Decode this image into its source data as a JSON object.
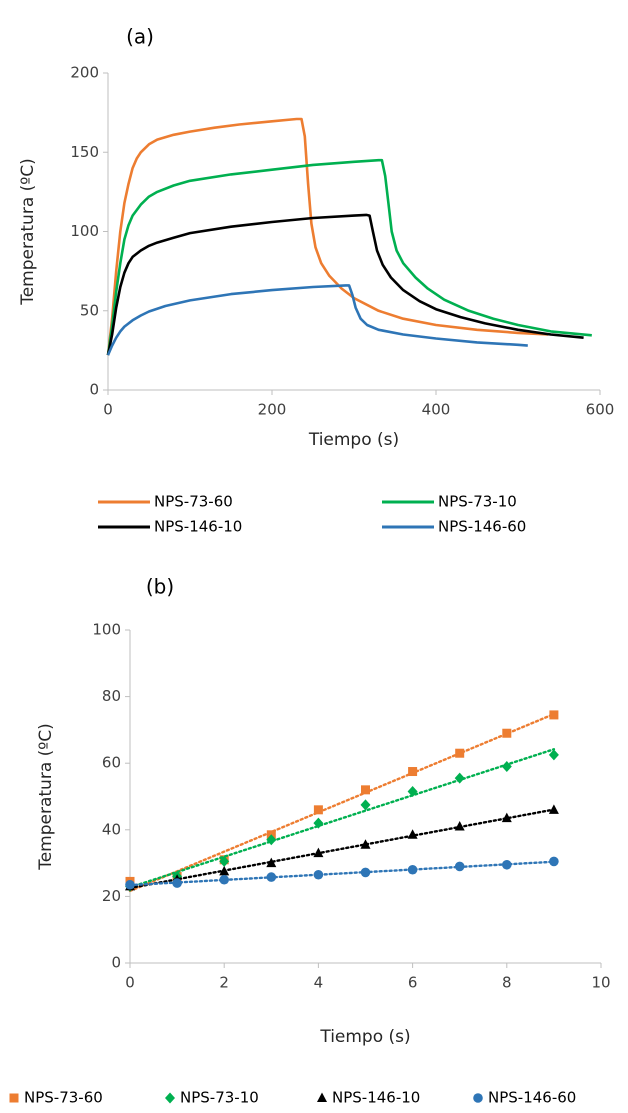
{
  "chart_data": [
    {
      "type": "line",
      "panel_label": "(a)",
      "xlabel": "Tiempo (s)",
      "ylabel": "Temperatura (ºC)",
      "xlim": [
        0,
        600
      ],
      "ylim": [
        0,
        200
      ],
      "x_ticks": [
        0,
        200,
        400,
        600
      ],
      "y_ticks": [
        0,
        50,
        100,
        150,
        200
      ],
      "grid": false,
      "legend_position": "bottom",
      "series": [
        {
          "name": "NPS-73-60",
          "color": "#ED7D31",
          "points": [
            [
              0,
              22
            ],
            [
              5,
              45
            ],
            [
              10,
              75
            ],
            [
              15,
              100
            ],
            [
              20,
              118
            ],
            [
              25,
              130
            ],
            [
              30,
              140
            ],
            [
              35,
              146
            ],
            [
              40,
              150
            ],
            [
              50,
              155
            ],
            [
              60,
              158
            ],
            [
              80,
              161
            ],
            [
              100,
              163
            ],
            [
              130,
              165.5
            ],
            [
              160,
              167.5
            ],
            [
              200,
              169.5
            ],
            [
              230,
              171
            ],
            [
              236,
              171
            ],
            [
              240,
              160
            ],
            [
              244,
              130
            ],
            [
              248,
              105
            ],
            [
              253,
              90
            ],
            [
              260,
              80
            ],
            [
              270,
              72
            ],
            [
              285,
              64
            ],
            [
              300,
              58
            ],
            [
              330,
              50
            ],
            [
              360,
              45
            ],
            [
              400,
              41
            ],
            [
              450,
              38
            ],
            [
              500,
              36
            ],
            [
              537,
              35
            ]
          ]
        },
        {
          "name": "NPS-73-10",
          "color": "#00B050",
          "points": [
            [
              0,
              22
            ],
            [
              5,
              40
            ],
            [
              10,
              62
            ],
            [
              15,
              80
            ],
            [
              20,
              95
            ],
            [
              25,
              104
            ],
            [
              30,
              110
            ],
            [
              40,
              117
            ],
            [
              50,
              122
            ],
            [
              60,
              125
            ],
            [
              80,
              129
            ],
            [
              100,
              132
            ],
            [
              150,
              136
            ],
            [
              200,
              139
            ],
            [
              250,
              142
            ],
            [
              300,
              144
            ],
            [
              330,
              145
            ],
            [
              334,
              145
            ],
            [
              338,
              135
            ],
            [
              342,
              118
            ],
            [
              346,
              100
            ],
            [
              352,
              88
            ],
            [
              360,
              80
            ],
            [
              375,
              71
            ],
            [
              390,
              64
            ],
            [
              410,
              57
            ],
            [
              440,
              50
            ],
            [
              470,
              45
            ],
            [
              500,
              41
            ],
            [
              540,
              37
            ],
            [
              590,
              34.5
            ]
          ]
        },
        {
          "name": "NPS-146-10",
          "color": "#000000",
          "points": [
            [
              0,
              22
            ],
            [
              5,
              35
            ],
            [
              10,
              52
            ],
            [
              15,
              65
            ],
            [
              20,
              74
            ],
            [
              25,
              80
            ],
            [
              30,
              84
            ],
            [
              40,
              88
            ],
            [
              50,
              91
            ],
            [
              60,
              93
            ],
            [
              80,
              96
            ],
            [
              100,
              99
            ],
            [
              150,
              103
            ],
            [
              200,
              106
            ],
            [
              250,
              108.5
            ],
            [
              300,
              110
            ],
            [
              315,
              110.5
            ],
            [
              319,
              110
            ],
            [
              323,
              100
            ],
            [
              328,
              88
            ],
            [
              335,
              79
            ],
            [
              345,
              71
            ],
            [
              360,
              63
            ],
            [
              380,
              56
            ],
            [
              400,
              51
            ],
            [
              430,
              46
            ],
            [
              460,
              42
            ],
            [
              500,
              38
            ],
            [
              540,
              35
            ],
            [
              580,
              33
            ]
          ]
        },
        {
          "name": "NPS-146-60",
          "color": "#2E75B6",
          "points": [
            [
              0,
              22
            ],
            [
              5,
              28
            ],
            [
              10,
              33
            ],
            [
              15,
              37
            ],
            [
              20,
              40
            ],
            [
              30,
              44
            ],
            [
              40,
              47
            ],
            [
              50,
              49.5
            ],
            [
              70,
              53
            ],
            [
              100,
              56.5
            ],
            [
              150,
              60.5
            ],
            [
              200,
              63
            ],
            [
              250,
              65
            ],
            [
              290,
              66
            ],
            [
              294,
              66
            ],
            [
              298,
              60
            ],
            [
              302,
              52
            ],
            [
              308,
              45
            ],
            [
              316,
              41
            ],
            [
              330,
              38
            ],
            [
              360,
              35
            ],
            [
              400,
              32.5
            ],
            [
              450,
              30
            ],
            [
              500,
              28.5
            ],
            [
              512,
              28
            ]
          ]
        }
      ]
    },
    {
      "type": "scatter",
      "panel_label": "(b)",
      "xlabel": "Tiempo (s)",
      "ylabel": "Temperatura (ºC)",
      "xlim": [
        0,
        10
      ],
      "ylim": [
        0,
        100
      ],
      "x_ticks": [
        0,
        2,
        4,
        6,
        8,
        10
      ],
      "y_ticks": [
        0,
        20,
        40,
        60,
        80,
        100
      ],
      "grid": false,
      "legend_position": "bottom",
      "trendlines": "linear, dotted",
      "series": [
        {
          "name": "NPS-73-60",
          "color": "#ED7D31",
          "marker": "square",
          "x": [
            0,
            1,
            2,
            3,
            4,
            5,
            6,
            7,
            8,
            9
          ],
          "y": [
            24.5,
            26,
            31,
            38.5,
            46,
            52,
            57.5,
            63,
            69,
            74.5
          ]
        },
        {
          "name": "NPS-73-10",
          "color": "#00B050",
          "marker": "diamond",
          "x": [
            0,
            1,
            2,
            3,
            4,
            5,
            6,
            7,
            8,
            9
          ],
          "y": [
            23,
            26,
            30.5,
            37,
            42,
            47.5,
            51.5,
            55.5,
            59,
            62.5
          ]
        },
        {
          "name": "NPS-146-10",
          "color": "#000000",
          "marker": "triangle",
          "x": [
            0,
            1,
            2,
            3,
            4,
            5,
            6,
            7,
            8,
            9
          ],
          "y": [
            23,
            25,
            27.5,
            30,
            33,
            35.5,
            38.5,
            41,
            43.5,
            46
          ]
        },
        {
          "name": "NPS-146-60",
          "color": "#2E75B6",
          "marker": "circle",
          "x": [
            0,
            1,
            2,
            3,
            4,
            5,
            6,
            7,
            8,
            9
          ],
          "y": [
            23.5,
            24,
            25,
            25.8,
            26.5,
            27.2,
            28,
            29,
            29.5,
            30.5
          ]
        }
      ]
    }
  ]
}
